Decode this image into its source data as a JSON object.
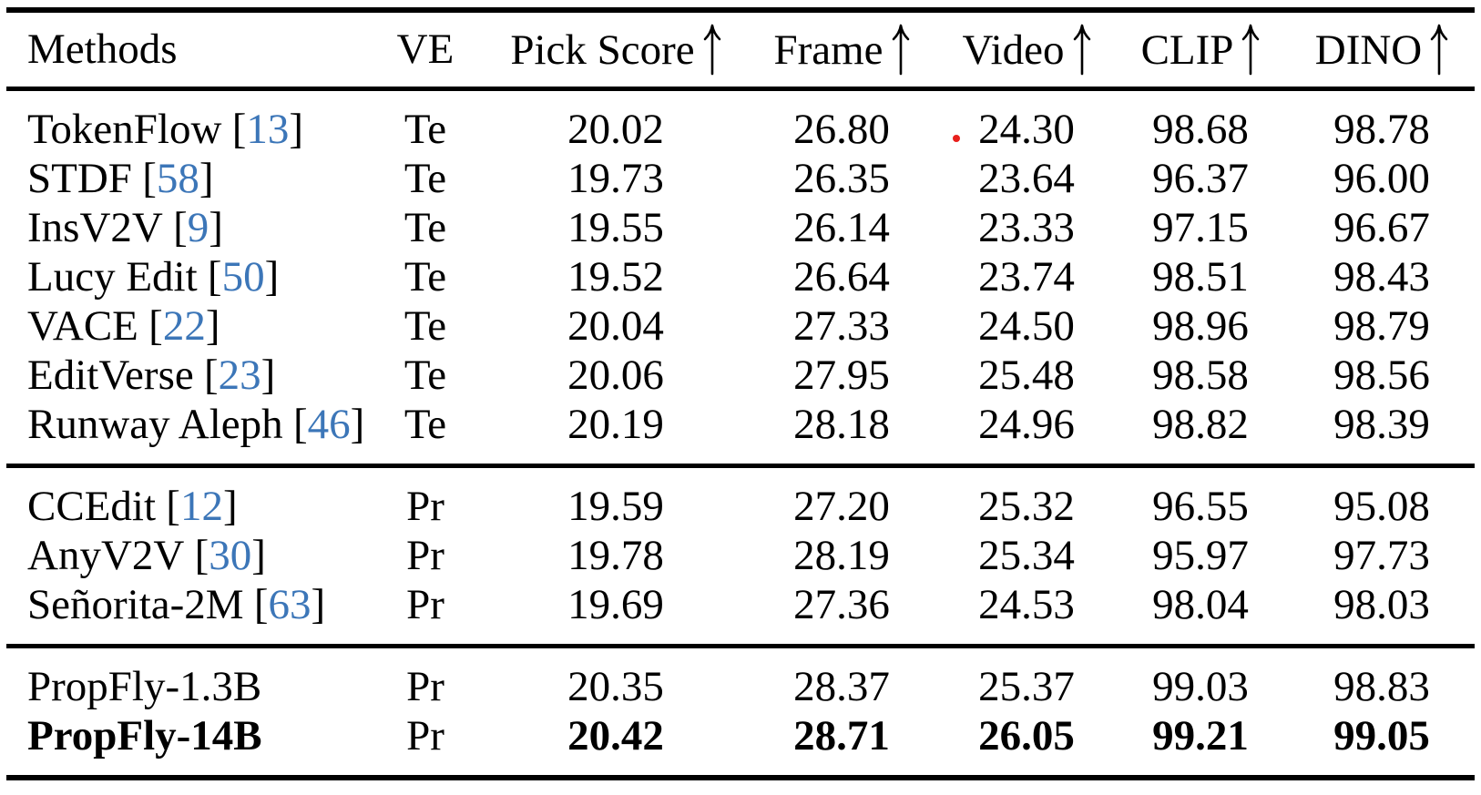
{
  "colors": {
    "citation_blue": "#3c76b8",
    "rule_black": "#000000",
    "artifact_red": "#e8201c"
  },
  "table": {
    "citation_brackets": [
      "[",
      "]"
    ],
    "columns": [
      {
        "id": "methods",
        "label": "Methods",
        "arrow": false
      },
      {
        "id": "ve",
        "label": "VE",
        "arrow": false
      },
      {
        "id": "pick-score",
        "label": "Pick Score",
        "arrow": true
      },
      {
        "id": "frame",
        "label": "Frame",
        "arrow": true
      },
      {
        "id": "video",
        "label": "Video",
        "arrow": true
      },
      {
        "id": "clip",
        "label": "CLIP",
        "arrow": true
      },
      {
        "id": "dino",
        "label": "DINO",
        "arrow": true
      }
    ],
    "sections": [
      {
        "rows": [
          {
            "method": "TokenFlow",
            "cite": "13",
            "ve": "Te",
            "values": [
              "20.02",
              "26.80",
              "24.30",
              "98.68",
              "98.78"
            ],
            "bold": false
          },
          {
            "method": "STDF",
            "cite": "58",
            "ve": "Te",
            "values": [
              "19.73",
              "26.35",
              "23.64",
              "96.37",
              "96.00"
            ],
            "bold": false
          },
          {
            "method": "InsV2V",
            "cite": "9",
            "ve": "Te",
            "values": [
              "19.55",
              "26.14",
              "23.33",
              "97.15",
              "96.67"
            ],
            "bold": false
          },
          {
            "method": "Lucy Edit",
            "cite": "50",
            "ve": "Te",
            "values": [
              "19.52",
              "26.64",
              "23.74",
              "98.51",
              "98.43"
            ],
            "bold": false
          },
          {
            "method": "VACE",
            "cite": "22",
            "ve": "Te",
            "values": [
              "20.04",
              "27.33",
              "24.50",
              "98.96",
              "98.79"
            ],
            "bold": false
          },
          {
            "method": "EditVerse",
            "cite": "23",
            "ve": "Te",
            "values": [
              "20.06",
              "27.95",
              "25.48",
              "98.58",
              "98.56"
            ],
            "bold": false
          },
          {
            "method": "Runway Aleph",
            "cite": "46",
            "ve": "Te",
            "values": [
              "20.19",
              "28.18",
              "24.96",
              "98.82",
              "98.39"
            ],
            "bold": false
          }
        ]
      },
      {
        "rows": [
          {
            "method": "CCEdit",
            "cite": "12",
            "ve": "Pr",
            "values": [
              "19.59",
              "27.20",
              "25.32",
              "96.55",
              "95.08"
            ],
            "bold": false
          },
          {
            "method": "AnyV2V",
            "cite": "30",
            "ve": "Pr",
            "values": [
              "19.78",
              "28.19",
              "25.34",
              "95.97",
              "97.73"
            ],
            "bold": false
          },
          {
            "method": "Señorita-2M",
            "cite": "63",
            "ve": "Pr",
            "values": [
              "19.69",
              "27.36",
              "24.53",
              "98.04",
              "98.03"
            ],
            "bold": false
          }
        ]
      },
      {
        "rows": [
          {
            "method": "PropFly-1.3B",
            "cite": null,
            "ve": "Pr",
            "values": [
              "20.35",
              "28.37",
              "25.37",
              "99.03",
              "98.83"
            ],
            "bold": false
          },
          {
            "method": "PropFly-14B",
            "cite": null,
            "ve": "Pr",
            "values": [
              "20.42",
              "28.71",
              "26.05",
              "99.21",
              "99.05"
            ],
            "bold": true
          }
        ]
      }
    ]
  }
}
